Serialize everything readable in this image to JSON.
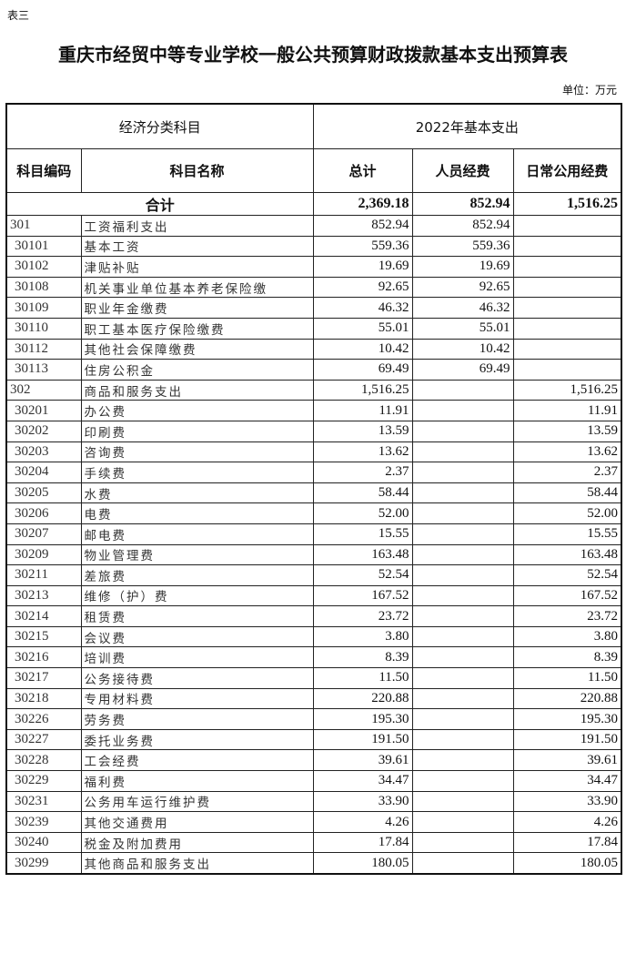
{
  "doc_label": "表三",
  "title": "重庆市经贸中等专业学校一般公共预算财政拨款基本支出预算表",
  "unit": "单位：万元",
  "header": {
    "group_left": "经济分类科目",
    "group_right": "2022年基本支出",
    "code": "科目编码",
    "name": "科目名称",
    "total": "总计",
    "personnel": "人员经费",
    "daily": "日常公用经费"
  },
  "total_row": {
    "label": "合计",
    "total": "2,369.18",
    "personnel": "852.94",
    "daily": "1,516.25"
  },
  "rows": [
    {
      "code": "301",
      "name": "工资福利支出",
      "total": "852.94",
      "personnel": "852.94",
      "daily": "",
      "level": 1
    },
    {
      "code": "30101",
      "name": "基本工资",
      "total": "559.36",
      "personnel": "559.36",
      "daily": "",
      "level": 2
    },
    {
      "code": "30102",
      "name": "津贴补贴",
      "total": "19.69",
      "personnel": "19.69",
      "daily": "",
      "level": 2
    },
    {
      "code": "30108",
      "name": "机关事业单位基本养老保险缴",
      "total": "92.65",
      "personnel": "92.65",
      "daily": "",
      "level": 2
    },
    {
      "code": "30109",
      "name": "职业年金缴费",
      "total": "46.32",
      "personnel": "46.32",
      "daily": "",
      "level": 2
    },
    {
      "code": "30110",
      "name": "职工基本医疗保险缴费",
      "total": "55.01",
      "personnel": "55.01",
      "daily": "",
      "level": 2
    },
    {
      "code": "30112",
      "name": "其他社会保障缴费",
      "total": "10.42",
      "personnel": "10.42",
      "daily": "",
      "level": 2
    },
    {
      "code": "30113",
      "name": "住房公积金",
      "total": "69.49",
      "personnel": "69.49",
      "daily": "",
      "level": 2
    },
    {
      "code": "302",
      "name": "商品和服务支出",
      "total": "1,516.25",
      "personnel": "",
      "daily": "1,516.25",
      "level": 1
    },
    {
      "code": "30201",
      "name": "办公费",
      "total": "11.91",
      "personnel": "",
      "daily": "11.91",
      "level": 2
    },
    {
      "code": "30202",
      "name": "印刷费",
      "total": "13.59",
      "personnel": "",
      "daily": "13.59",
      "level": 2
    },
    {
      "code": "30203",
      "name": "咨询费",
      "total": "13.62",
      "personnel": "",
      "daily": "13.62",
      "level": 2
    },
    {
      "code": "30204",
      "name": "手续费",
      "total": "2.37",
      "personnel": "",
      "daily": "2.37",
      "level": 2
    },
    {
      "code": "30205",
      "name": "水费",
      "total": "58.44",
      "personnel": "",
      "daily": "58.44",
      "level": 2
    },
    {
      "code": "30206",
      "name": "电费",
      "total": "52.00",
      "personnel": "",
      "daily": "52.00",
      "level": 2
    },
    {
      "code": "30207",
      "name": "邮电费",
      "total": "15.55",
      "personnel": "",
      "daily": "15.55",
      "level": 2
    },
    {
      "code": "30209",
      "name": "物业管理费",
      "total": "163.48",
      "personnel": "",
      "daily": "163.48",
      "level": 2
    },
    {
      "code": "30211",
      "name": "差旅费",
      "total": "52.54",
      "personnel": "",
      "daily": "52.54",
      "level": 2
    },
    {
      "code": "30213",
      "name": "维修（护）费",
      "total": "167.52",
      "personnel": "",
      "daily": "167.52",
      "level": 2
    },
    {
      "code": "30214",
      "name": "租赁费",
      "total": "23.72",
      "personnel": "",
      "daily": "23.72",
      "level": 2
    },
    {
      "code": "30215",
      "name": "会议费",
      "total": "3.80",
      "personnel": "",
      "daily": "3.80",
      "level": 2
    },
    {
      "code": "30216",
      "name": "培训费",
      "total": "8.39",
      "personnel": "",
      "daily": "8.39",
      "level": 2
    },
    {
      "code": "30217",
      "name": "公务接待费",
      "total": "11.50",
      "personnel": "",
      "daily": "11.50",
      "level": 2
    },
    {
      "code": "30218",
      "name": "专用材料费",
      "total": "220.88",
      "personnel": "",
      "daily": "220.88",
      "level": 2
    },
    {
      "code": "30226",
      "name": "劳务费",
      "total": "195.30",
      "personnel": "",
      "daily": "195.30",
      "level": 2
    },
    {
      "code": "30227",
      "name": "委托业务费",
      "total": "191.50",
      "personnel": "",
      "daily": "191.50",
      "level": 2
    },
    {
      "code": "30228",
      "name": "工会经费",
      "total": "39.61",
      "personnel": "",
      "daily": "39.61",
      "level": 2
    },
    {
      "code": "30229",
      "name": "福利费",
      "total": "34.47",
      "personnel": "",
      "daily": "34.47",
      "level": 2
    },
    {
      "code": "30231",
      "name": "公务用车运行维护费",
      "total": "33.90",
      "personnel": "",
      "daily": "33.90",
      "level": 2
    },
    {
      "code": "30239",
      "name": "其他交通费用",
      "total": "4.26",
      "personnel": "",
      "daily": "4.26",
      "level": 2
    },
    {
      "code": "30240",
      "name": "税金及附加费用",
      "total": "17.84",
      "personnel": "",
      "daily": "17.84",
      "level": 2
    },
    {
      "code": "30299",
      "name": "其他商品和服务支出",
      "total": "180.05",
      "personnel": "",
      "daily": "180.05",
      "level": 2
    }
  ]
}
